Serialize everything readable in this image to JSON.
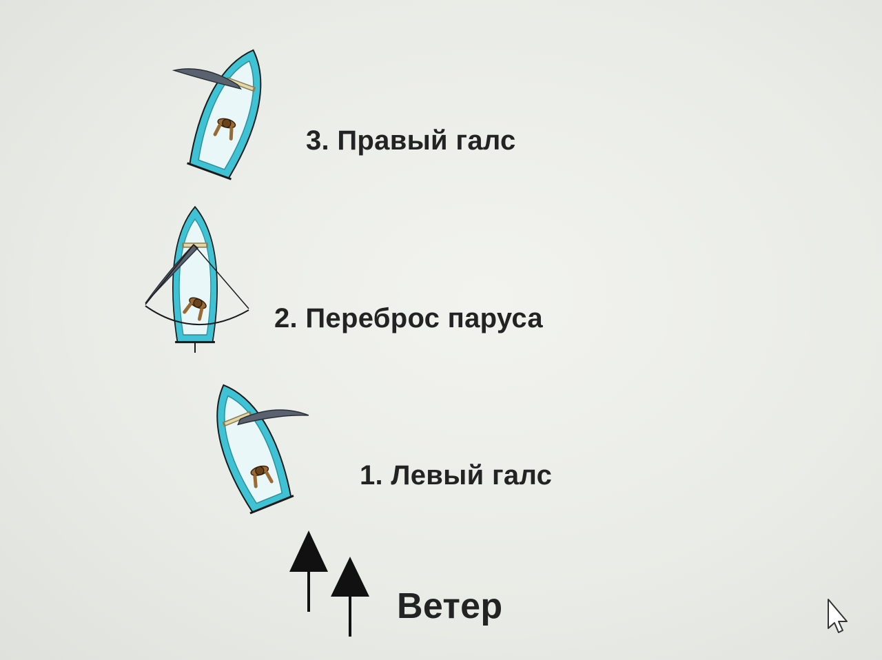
{
  "steps": [
    {
      "label": "1. Левый галс"
    },
    {
      "label": "2. Переброс паруса"
    },
    {
      "label": "3. Правый галс"
    }
  ],
  "wind": {
    "label": "Ветер"
  },
  "colors": {
    "hull": "#3fc2d4",
    "deck": "#eaf7f8",
    "sail": "#5a6270",
    "sailor": "#9a6a34",
    "outline": "#1a1a1a",
    "text": "#232323"
  },
  "icons": [
    "boat-icon",
    "sail-icon",
    "sailor-icon",
    "wind-arrow-icon",
    "mouse-cursor-icon"
  ]
}
